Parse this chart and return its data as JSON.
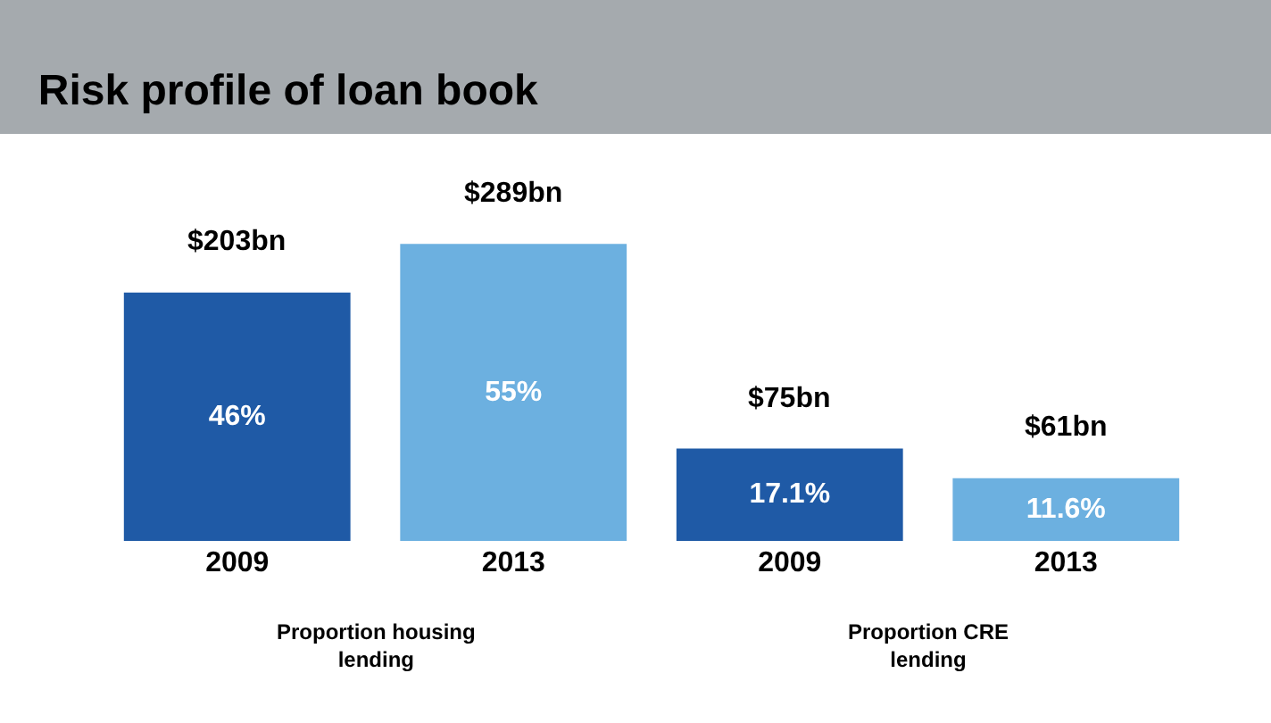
{
  "chart_data": {
    "type": "bar",
    "title": "Risk profile of loan book",
    "categories": [
      "2009",
      "2013",
      "2009",
      "2013"
    ],
    "values": [
      46,
      55,
      17.1,
      11.6
    ],
    "colors": [
      "#1f5aa6",
      "#6cb0e0",
      "#1f5aa6",
      "#6cb0e0"
    ],
    "data_labels": true,
    "value_labels": [
      "46%",
      "55%",
      "17.1%",
      "11.6%"
    ],
    "annotations": [
      {
        "text": "$203bn",
        "x": "2009",
        "y": 46
      },
      {
        "text": "$289bn",
        "x": "2013",
        "y": 55
      },
      "$75bn",
      "$61bn",
      "Proportion housing lending",
      "Proportion CRE lending"
    ],
    "legend": false
  }
}
